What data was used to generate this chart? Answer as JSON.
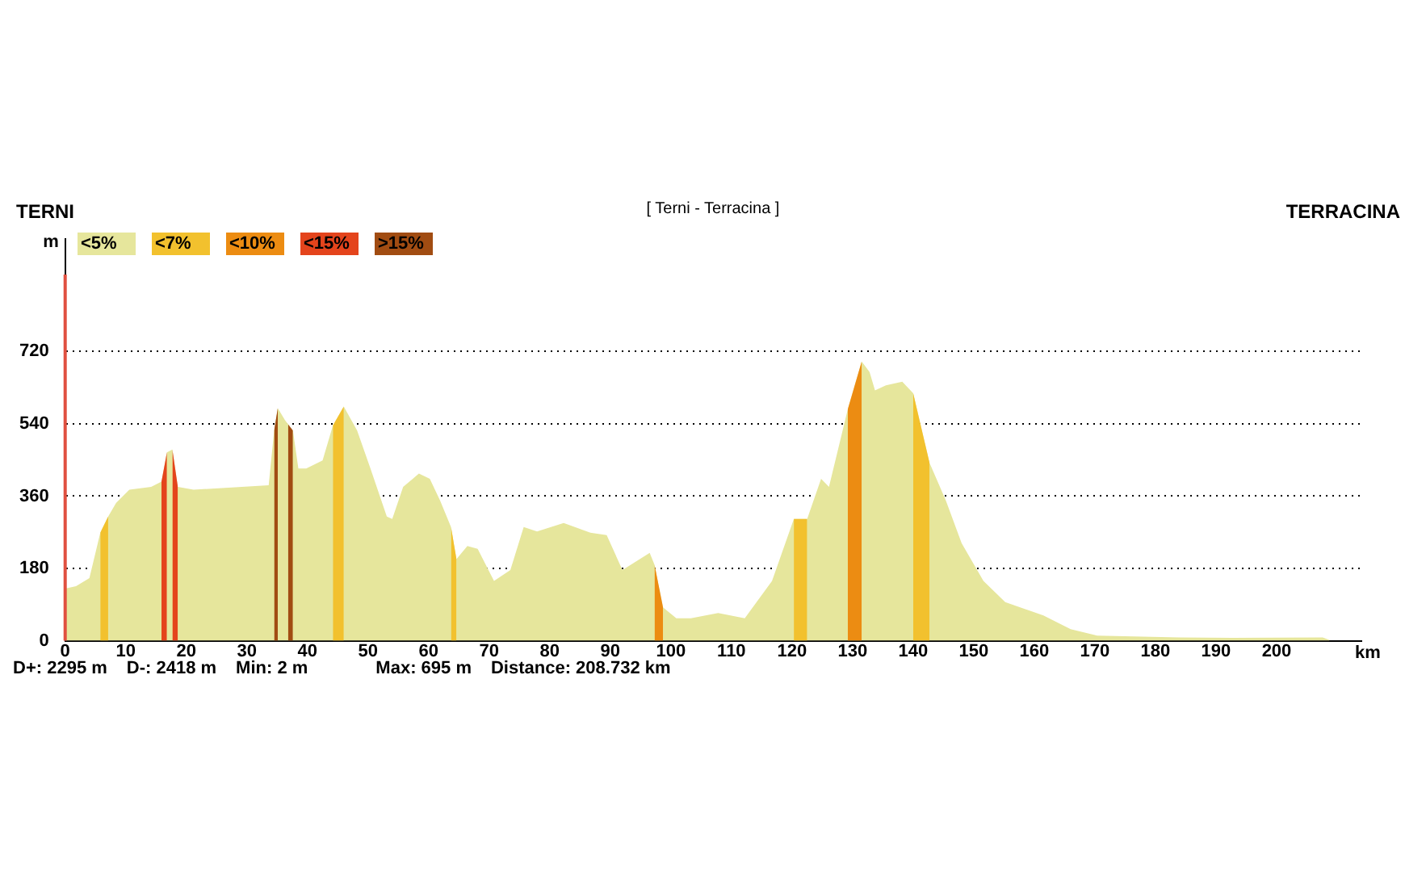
{
  "chart_data": {
    "type": "area",
    "title": "[ Terni - Terracina ]",
    "xlabel": "km",
    "ylabel": "m",
    "annotations": [
      "TERNI",
      "TERRACINA",
      "D+: 2295 m",
      "D-: 2418 m",
      "Min: 2 m",
      "Max: 695 m",
      "Distance: 208.732 km"
    ],
    "x": [
      0,
      1.8,
      4,
      5.8,
      7.1,
      8.4,
      10.6,
      14.2,
      15.9,
      16.8,
      17.7,
      18.6,
      21.2,
      33.6,
      34.5,
      35.1,
      36.3,
      37.6,
      38.5,
      39.8,
      42.5,
      44.2,
      46,
      48.2,
      50.4,
      53.1,
      54,
      55.8,
      58.4,
      60.2,
      61.9,
      63.7,
      64.6,
      66.4,
      68.1,
      70.8,
      73.5,
      75.7,
      77.9,
      82.3,
      86.7,
      89.4,
      92,
      96.5,
      97.3,
      98.7,
      100.9,
      103.3,
      107.8,
      112.2,
      116.7,
      120.3,
      122.5,
      124.8,
      126.1,
      129.2,
      131.5,
      132.8,
      133.7,
      135.5,
      138.2,
      140,
      142.7,
      145.4,
      148,
      151.6,
      155.2,
      161.5,
      166,
      170.4,
      183.9,
      192.8,
      207.6,
      208.7
    ],
    "series": [
      {
        "name": "<5%",
        "color": "#e6e69c",
        "values": [
          130,
          136,
          156,
          269,
          309,
          343,
          376,
          383,
          396,
          469,
          476,
          383,
          376,
          387,
          523,
          579,
          549,
          523,
          429,
          429,
          449,
          536,
          583,
          523,
          429,
          309,
          303,
          383,
          416,
          403,
          349,
          283,
          203,
          236,
          229,
          149,
          176,
          283,
          272,
          293,
          269,
          263,
          176,
          219,
          189,
          83,
          56,
          56,
          69,
          56,
          149,
          303,
          303,
          403,
          383,
          576,
          695,
          669,
          623,
          636,
          645,
          616,
          443,
          349,
          243,
          149,
          96,
          63,
          29,
          13,
          8,
          7,
          8,
          2
        ]
      },
      {
        "name": "<7%",
        "color": "#f2c12e",
        "x": [
          5.8,
          7.1,
          20,
          44.2,
          46,
          55,
          63.7,
          64.6,
          110,
          120.3,
          122.5,
          136,
          140,
          142.7
        ],
        "values": [
          269,
          309,
          null,
          536,
          583,
          null,
          283,
          203,
          null,
          303,
          303,
          null,
          616,
          443
        ]
      },
      {
        "name": "<10%",
        "color": "#ec8c12",
        "x": [
          97.3,
          98.7,
          110,
          129.2,
          131.5
        ],
        "values": [
          189,
          83,
          null,
          576,
          695
        ]
      },
      {
        "name": "<15%",
        "color": "#e4441c",
        "x": [
          15.9,
          16.8,
          17.2,
          17.7,
          18.6
        ],
        "values": [
          396,
          469,
          null,
          476,
          383
        ]
      },
      {
        "name": ">15%",
        "color": "#a14c12",
        "x": [
          34.5,
          35.1,
          35.7,
          36.8,
          37.6
        ],
        "values": [
          523,
          579,
          null,
          539,
          523
        ]
      }
    ],
    "xlim": [
      0,
      214
    ],
    "ylim": [
      0,
      1000
    ],
    "xticks": [
      0,
      10,
      20,
      30,
      40,
      50,
      60,
      70,
      80,
      90,
      100,
      110,
      120,
      130,
      140,
      150,
      160,
      170,
      180,
      190,
      200
    ],
    "yticks": [
      0,
      180,
      360,
      540,
      720
    ],
    "ref_lines": [
      {
        "axis": "x",
        "value": 0,
        "color": "#e05040"
      }
    ],
    "grid": "y",
    "legend": "top left"
  }
}
